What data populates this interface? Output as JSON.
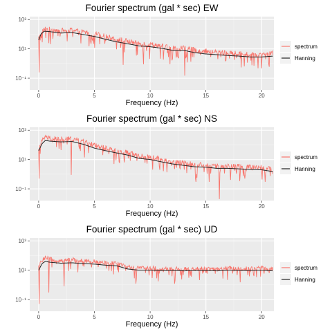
{
  "colors": {
    "panel_bg": "#ebebeb",
    "grid_major": "#ffffff",
    "grid_minor": "#f5f5f5",
    "spectrum": "#f8766d",
    "hanning": "#222222",
    "tick_text": "#4d4d4d"
  },
  "legend": {
    "items": [
      {
        "label": "spectrum",
        "color": "#f8766d"
      },
      {
        "label": "Hanning",
        "color": "#222222"
      }
    ],
    "placement": "right"
  },
  "chart_data": [
    {
      "type": "line",
      "title": "Fourier spectrum (gal * sec) EW",
      "xlabel": "Frequency (Hz)",
      "ylabel": "",
      "xlim": [
        -0.8,
        21.1
      ],
      "ylim_log10": [
        -1.8,
        3.2
      ],
      "log_y": true,
      "grid": true,
      "x_ticks": [
        0,
        5,
        10,
        15,
        20
      ],
      "y_ticks": [
        {
          "value": 0.1,
          "label": "10⁻¹"
        },
        {
          "value": 10,
          "label": "10¹"
        },
        {
          "value": 1000,
          "label": "10³"
        }
      ],
      "series": [
        {
          "name": "spectrum",
          "anchors_x": [
            0,
            0.2,
            0.5,
            1,
            2,
            3,
            4,
            5,
            6,
            7,
            8,
            9,
            10,
            11,
            12,
            13,
            14,
            15,
            16,
            17,
            18,
            19,
            20,
            21
          ],
          "anchors_y": [
            50,
            80,
            200,
            180,
            150,
            160,
            120,
            90,
            60,
            40,
            28,
            20,
            18,
            14,
            10,
            10,
            7,
            6,
            5,
            4.5,
            4,
            3.5,
            3.5,
            4
          ],
          "noise_up": 0.35,
          "dip_prob": 0.2,
          "dip_depth": 0.9,
          "dips": [
            {
              "x": 0.05,
              "y": 0.25
            },
            {
              "x": 13.1,
              "y": 0.15
            },
            {
              "x": 7.6,
              "y": 0.8
            },
            {
              "x": 9.4,
              "y": 0.9
            },
            {
              "x": 11.8,
              "y": 0.9
            },
            {
              "x": 19.3,
              "y": 0.7
            }
          ]
        },
        {
          "name": "Hanning",
          "x": [
            0,
            0.2,
            0.5,
            1,
            2,
            3,
            4,
            5,
            6,
            7,
            8,
            9,
            10,
            11,
            12,
            13,
            14,
            15,
            16,
            17,
            18,
            19,
            20,
            21
          ],
          "y": [
            40,
            100,
            160,
            150,
            120,
            130,
            95,
            70,
            45,
            30,
            22,
            16,
            14,
            11,
            8,
            8,
            5.5,
            4.5,
            4,
            3.5,
            3.2,
            2.8,
            2.8,
            3.2
          ]
        }
      ]
    },
    {
      "type": "line",
      "title": "Fourier spectrum (gal * sec) NS",
      "xlabel": "Frequency (Hz)",
      "ylabel": "",
      "xlim": [
        -0.8,
        21.1
      ],
      "ylim_log10": [
        -1.8,
        3.2
      ],
      "log_y": true,
      "grid": true,
      "x_ticks": [
        0,
        5,
        10,
        15,
        20
      ],
      "y_ticks": [
        {
          "value": 0.1,
          "label": "10⁻¹"
        },
        {
          "value": 10,
          "label": "10¹"
        },
        {
          "value": 1000,
          "label": "10³"
        }
      ],
      "series": [
        {
          "name": "spectrum",
          "anchors_x": [
            0,
            0.3,
            0.6,
            1,
            2,
            3,
            4,
            5,
            6,
            7,
            8,
            9,
            10,
            11,
            12,
            13,
            14,
            15,
            16,
            17,
            18,
            19,
            20,
            21
          ],
          "anchors_y": [
            50,
            150,
            300,
            250,
            200,
            220,
            140,
            80,
            50,
            35,
            25,
            15,
            12,
            9,
            6,
            5,
            4,
            3.5,
            3,
            3,
            2.8,
            2.5,
            2.5,
            2
          ],
          "noise_up": 0.35,
          "dip_prob": 0.2,
          "dip_depth": 0.9,
          "dips": [
            {
              "x": 0.05,
              "y": 0.5
            },
            {
              "x": 2.9,
              "y": 0.9
            },
            {
              "x": 15.3,
              "y": 0.3
            },
            {
              "x": 16.2,
              "y": 0.02
            },
            {
              "x": 14.1,
              "y": 0.3
            },
            {
              "x": 20.3,
              "y": 0.3
            }
          ]
        },
        {
          "name": "Hanning",
          "x": [
            0,
            0.3,
            0.6,
            1,
            2,
            3,
            4,
            5,
            6,
            7,
            8,
            9,
            10,
            11,
            12,
            13,
            14,
            15,
            16,
            17,
            18,
            19,
            20,
            21
          ],
          "y": [
            40,
            120,
            200,
            180,
            160,
            170,
            110,
            60,
            40,
            28,
            20,
            12,
            10,
            7,
            5,
            4,
            3.2,
            3,
            2.5,
            2.5,
            2.3,
            2.1,
            2,
            1.5
          ]
        }
      ]
    },
    {
      "type": "line",
      "title": "Fourier spectrum (gal * sec) UD",
      "xlabel": "Frequency (Hz)",
      "ylabel": "",
      "xlim": [
        -0.8,
        21.1
      ],
      "ylim_log10": [
        -1.8,
        3.2
      ],
      "log_y": true,
      "grid": true,
      "x_ticks": [
        0,
        5,
        10,
        15,
        20
      ],
      "y_ticks": [
        {
          "value": 0.1,
          "label": "10⁻¹"
        },
        {
          "value": 10,
          "label": "10¹"
        },
        {
          "value": 1000,
          "label": "10³"
        }
      ],
      "series": [
        {
          "name": "spectrum",
          "anchors_x": [
            0,
            0.3,
            0.6,
            1,
            2,
            3,
            4,
            5,
            6,
            7,
            8,
            9,
            10,
            11,
            12,
            13,
            14,
            15,
            16,
            17,
            18,
            19,
            20,
            21
          ],
          "anchors_y": [
            15,
            40,
            60,
            50,
            40,
            45,
            40,
            35,
            30,
            25,
            15,
            12,
            12,
            11,
            11,
            10,
            11,
            11,
            10,
            12,
            11,
            11,
            12,
            10
          ],
          "noise_up": 0.3,
          "dip_prob": 0.18,
          "dip_depth": 0.8,
          "dips": [
            {
              "x": 0.05,
              "y": 0.05
            },
            {
              "x": 0.9,
              "y": 0.3
            },
            {
              "x": 2.3,
              "y": 0.8
            },
            {
              "x": 8.7,
              "y": 1.2
            },
            {
              "x": 12.2,
              "y": 1.2
            },
            {
              "x": 18.1,
              "y": 1.5
            }
          ]
        },
        {
          "name": "Hanning",
          "x": [
            0,
            0.3,
            0.6,
            1,
            2,
            3,
            4,
            5,
            6,
            7,
            8,
            9,
            10,
            11,
            12,
            13,
            14,
            15,
            16,
            17,
            18,
            19,
            20,
            21
          ],
          "y": [
            10,
            28,
            40,
            35,
            30,
            32,
            28,
            26,
            22,
            20,
            12,
            10,
            10,
            9.5,
            9.5,
            9,
            9.5,
            9.5,
            9,
            10,
            9.5,
            9.5,
            10,
            9
          ]
        }
      ]
    }
  ]
}
